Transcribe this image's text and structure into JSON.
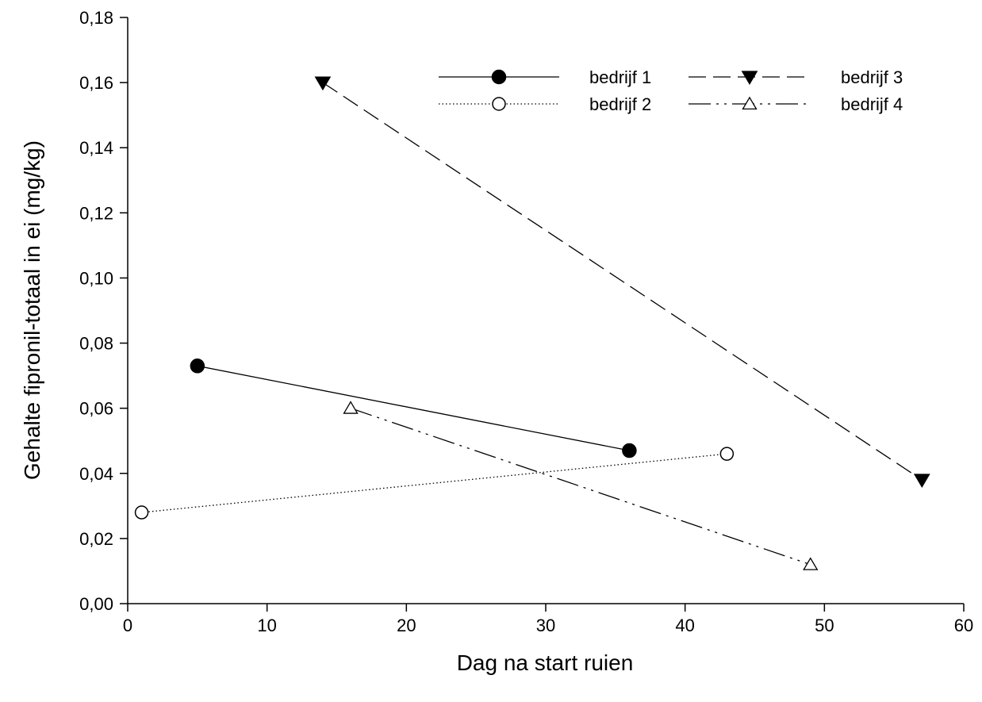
{
  "chart_data": {
    "type": "line",
    "xlabel": "Dag na start ruien",
    "ylabel": "Gehalte fipronil-totaal in ei (mg/kg)",
    "xlim": [
      0,
      60
    ],
    "ylim": [
      0,
      0.18
    ],
    "x_ticks": [
      "0",
      "10",
      "20",
      "30",
      "40",
      "50",
      "60"
    ],
    "y_ticks": [
      "0,00",
      "0,02",
      "0,04",
      "0,06",
      "0,08",
      "0,10",
      "0,12",
      "0,14",
      "0,16",
      "0,18"
    ],
    "grid": false,
    "legend_position": "top-right",
    "series": [
      {
        "name": "bedrijf 1",
        "x": [
          5,
          36
        ],
        "y": [
          0.073,
          0.047
        ],
        "marker": "filled-circle",
        "line": "solid"
      },
      {
        "name": "bedrijf 2",
        "x": [
          1,
          43
        ],
        "y": [
          0.028,
          0.046
        ],
        "marker": "open-circle",
        "line": "dotted"
      },
      {
        "name": "bedrijf 3",
        "x": [
          14,
          57
        ],
        "y": [
          0.16,
          0.038
        ],
        "marker": "filled-triangle-down",
        "line": "dashed"
      },
      {
        "name": "bedrijf 4",
        "x": [
          16,
          49
        ],
        "y": [
          0.06,
          0.012
        ],
        "marker": "open-triangle-up",
        "line": "dash-dot-dot"
      }
    ]
  }
}
